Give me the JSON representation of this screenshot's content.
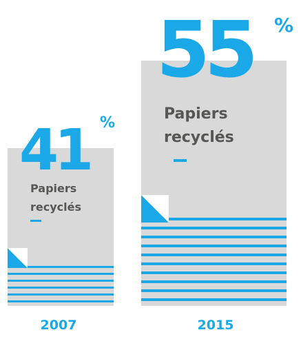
{
  "colors": {
    "accent": "#1aa8e8",
    "paper": "#d9d9d9",
    "label": "#575756",
    "background": "#ffffff"
  },
  "chart_data": {
    "type": "bar",
    "categories": [
      "2007",
      "2015"
    ],
    "values": [
      41,
      55
    ],
    "unit": "%",
    "value_labels": [
      "41",
      "55"
    ],
    "bar_label_lines": [
      "Papiers",
      "recyclés"
    ],
    "ylim": [
      0,
      100
    ]
  }
}
